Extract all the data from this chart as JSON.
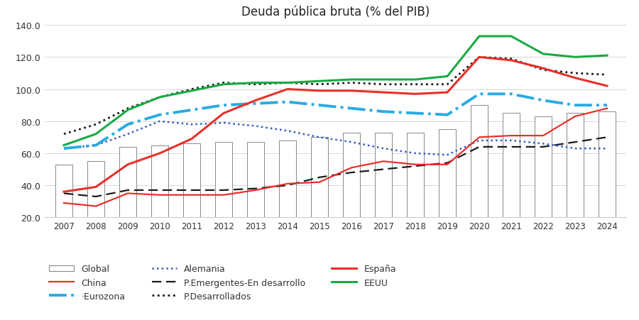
{
  "title": "Deuda pública bruta (% del PIB)",
  "years": [
    2007,
    2008,
    2009,
    2010,
    2011,
    2012,
    2013,
    2014,
    2015,
    2016,
    2017,
    2018,
    2019,
    2020,
    2021,
    2022,
    2023,
    2024
  ],
  "global_bars": [
    53,
    55,
    64,
    65,
    66,
    67,
    67,
    68,
    70,
    73,
    73,
    73,
    75,
    90,
    85,
    83,
    85,
    86
  ],
  "china": [
    29,
    27,
    35,
    34,
    34,
    34,
    37,
    41,
    42,
    51,
    55,
    53,
    53,
    70,
    71,
    71,
    83,
    88
  ],
  "eurozona": [
    63,
    65,
    78,
    84,
    87,
    90,
    91,
    92,
    90,
    88,
    86,
    85,
    84,
    97,
    97,
    93,
    90,
    90
  ],
  "alemania": [
    63,
    65,
    72,
    80,
    78,
    79,
    77,
    74,
    70,
    67,
    63,
    60,
    59,
    68,
    68,
    66,
    63,
    63
  ],
  "p_emergentes": [
    35,
    33,
    37,
    37,
    37,
    37,
    38,
    40,
    45,
    48,
    50,
    52,
    54,
    64,
    64,
    64,
    67,
    70
  ],
  "p_desarrollados": [
    72,
    78,
    88,
    95,
    100,
    104,
    103,
    104,
    103,
    104,
    103,
    103,
    103,
    120,
    119,
    112,
    110,
    109
  ],
  "espana": [
    36,
    39,
    53,
    60,
    69,
    85,
    93,
    100,
    99,
    99,
    98,
    97,
    98,
    120,
    118,
    113,
    107,
    102
  ],
  "eeuu": [
    65,
    72,
    87,
    95,
    99,
    103,
    104,
    104,
    105,
    106,
    106,
    106,
    108,
    133,
    133,
    122,
    120,
    121
  ],
  "ylim": [
    20,
    140
  ],
  "yticks": [
    20,
    40,
    60,
    80,
    100,
    120,
    140
  ],
  "background_color": "#ffffff",
  "bar_edgecolor": "#888888",
  "china_color": "#e8302a",
  "eurozona_color": "#29abe2",
  "alemania_color": "#2f5bbd",
  "p_emergentes_color": "#1a1a1a",
  "p_desarrollados_color": "#1a1a1a",
  "espana_color": "#e8302a",
  "eeuu_color": "#1aaa45",
  "legend_items": [
    {
      "label": "Global",
      "type": "bar"
    },
    {
      "label": "China",
      "type": "line",
      "color": "#e8302a",
      "lw": 1.8,
      "ls": "solid"
    },
    {
      "label": "·Eurozona",
      "type": "line",
      "color": "#29abe2",
      "lw": 2.5,
      "ls": "dashdot"
    },
    {
      "label": "Alemania",
      "type": "line",
      "color": "#2f5bbd",
      "lw": 1.8,
      "ls": "dotted"
    },
    {
      "label": "P.Emergentes-En desarrollo",
      "type": "line",
      "color": "#1a1a1a",
      "lw": 1.8,
      "ls": "dashed"
    },
    {
      "label": "P.Desarrollados",
      "type": "line",
      "color": "#1a1a1a",
      "lw": 2.2,
      "ls": "dotted"
    },
    {
      "label": "España",
      "type": "line",
      "color": "#e8302a",
      "lw": 2.2,
      "ls": "solid"
    },
    {
      "label": "EEUU",
      "type": "line",
      "color": "#1aaa45",
      "lw": 2.2,
      "ls": "solid"
    }
  ]
}
